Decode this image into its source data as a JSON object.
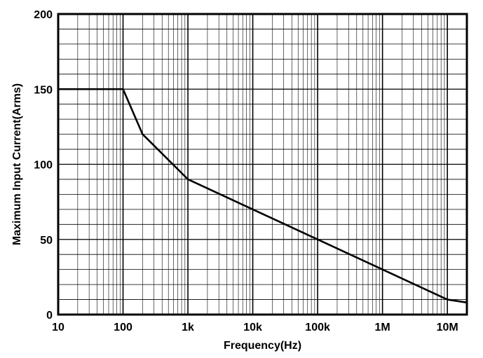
{
  "chart_data": {
    "type": "line",
    "title": "",
    "xlabel": "Frequency(Hz)",
    "ylabel": "Maximum Input Current(Arms)",
    "x_scale": "log",
    "xlim": [
      10,
      20000000
    ],
    "ylim": [
      0,
      200
    ],
    "grid": true,
    "x_ticks": [
      {
        "value": 10,
        "label": "10"
      },
      {
        "value": 100,
        "label": "100"
      },
      {
        "value": 1000,
        "label": "1k"
      },
      {
        "value": 10000,
        "label": "10k"
      },
      {
        "value": 100000,
        "label": "100k"
      },
      {
        "value": 1000000,
        "label": "1M"
      },
      {
        "value": 10000000,
        "label": "10M"
      }
    ],
    "y_ticks": [
      {
        "value": 0,
        "label": "0"
      },
      {
        "value": 50,
        "label": "50"
      },
      {
        "value": 100,
        "label": "100"
      },
      {
        "value": 150,
        "label": "150"
      },
      {
        "value": 200,
        "label": "200"
      }
    ],
    "y_minor_step": 10,
    "series": [
      {
        "x": [
          10,
          100,
          200,
          1000,
          10000000,
          20000000
        ],
        "y": [
          150,
          150,
          120,
          90,
          10,
          8
        ]
      }
    ],
    "colors": {
      "line": "#000000",
      "grid": "#000000",
      "background": "#ffffff"
    }
  }
}
